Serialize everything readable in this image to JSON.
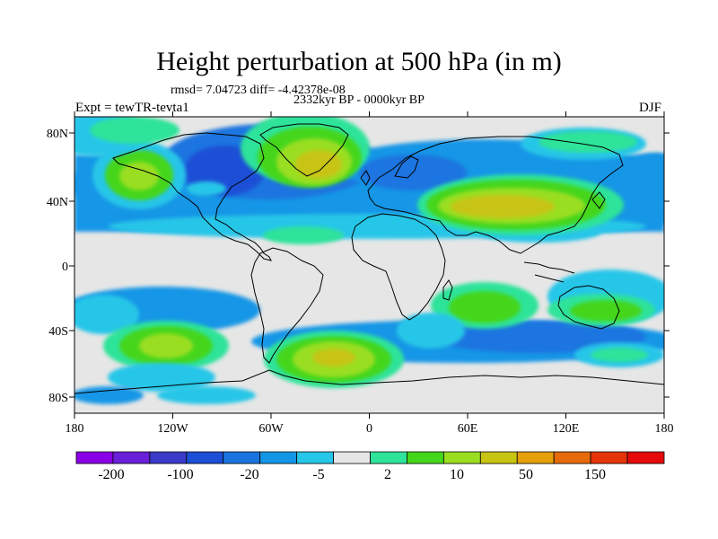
{
  "title": "Height perturbation at 500 hPa (in m)",
  "stats": "rmsd= 7.04723  diff= -4.42378e-08",
  "period": "2332kyr BP - 0000kyr BP",
  "experiment": "Expt = tewTR-tevta1",
  "season": "DJF",
  "map": {
    "lat_labels": [
      "80N",
      "40N",
      "0",
      "40S",
      "80S"
    ],
    "lon_labels": [
      "180",
      "120W",
      "60W",
      "0",
      "60E",
      "120E",
      "180"
    ]
  },
  "colorbar": {
    "colors": [
      "#8a00e6",
      "#6a1fd8",
      "#3a3ac8",
      "#1d4fd6",
      "#1a74e0",
      "#1496e6",
      "#26c6e8",
      "#e6e6e6",
      "#2ee39a",
      "#44d61a",
      "#9ade22",
      "#c8c414",
      "#e6a00a",
      "#e66a0a",
      "#e6340a",
      "#e60a0a"
    ],
    "labels": [
      "-200",
      "-100",
      "-20",
      "-5",
      "2",
      "10",
      "50",
      "150"
    ]
  },
  "palette": {
    "neutral": "#e6e6e6",
    "blue_dark": "#1d4fd6",
    "blue_mid": "#1a74e0",
    "blue": "#1496e6",
    "cyan": "#26c6e8",
    "mint": "#2ee39a",
    "green": "#44d61a",
    "lime": "#9ade22",
    "olive": "#c8c414"
  }
}
